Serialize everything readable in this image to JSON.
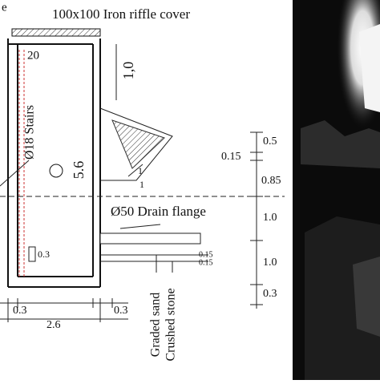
{
  "drawing": {
    "corner_letter": "e",
    "cover": "100x100 Iron riffle cover",
    "cover_offset": "20",
    "cover_height": "1,0",
    "stairs": "Ø18 Stairs",
    "depth": "5.6",
    "slope": [
      "1",
      "1"
    ],
    "drain": "Ø50 Drain flange",
    "pipe_dims": [
      "0.15",
      "0.15"
    ],
    "step_dim": "0.3",
    "right_dims": [
      "0.5",
      "0.15",
      "0.85",
      "1.0",
      "1.0",
      "0.3"
    ],
    "bottom_dims": [
      "0.3",
      "2.6",
      "0.3"
    ],
    "layers": [
      "Graded sand",
      "Crushed stone"
    ]
  }
}
